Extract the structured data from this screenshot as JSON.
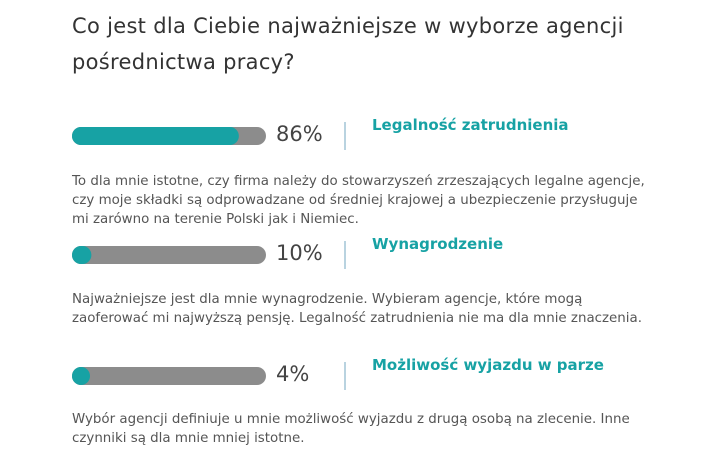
{
  "chart_data": {
    "type": "bar",
    "title": "Co jest dla Ciebie najważniejsze w wyborze agencji pośrednictwa pracy?",
    "categories": [
      "Legalność zatrudnienia",
      "Wynagrodzenie",
      "Możliwość wyjazdu w parze"
    ],
    "values": [
      86,
      10,
      4
    ],
    "value_labels": [
      "86%",
      "10%",
      "4%"
    ],
    "descriptions": [
      "To dla mnie istotne, czy firma należy do stowarzyszeń zrzeszających legalne agencje, czy moje składki są odprowadzane od średniej krajowej a ubezpieczenie przysługuje mi zarówno na terenie Polski jak i Niemiec.",
      "Najważniejsze jest dla mnie wynagrodzenie. Wybieram agencje, które mogą zaoferować mi najwyższą pensję. Legalność zatrudnienia nie ma dla mnie znaczenia.",
      "Wybór agencji definiuje u mnie możliwość wyjazdu z drugą osobą na zlecenie. Inne czynniki są dla mnie mniej istotne."
    ],
    "color": "#17a2a4",
    "track_color": "#8c8c8c",
    "xlim": [
      0,
      100
    ]
  }
}
